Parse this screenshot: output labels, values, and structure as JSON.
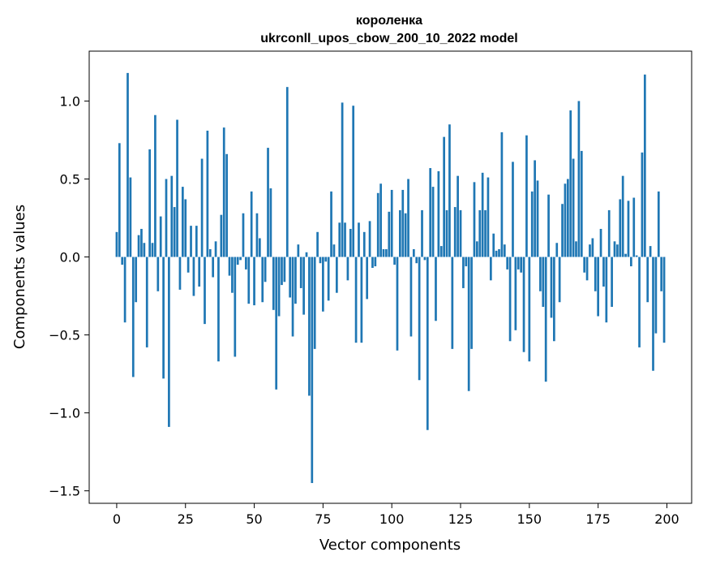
{
  "chart_data": {
    "type": "bar",
    "title": "короленка",
    "subtitle": "ukrconll_upos_cbow_200_10_2022 model",
    "xlabel": "Vector components",
    "ylabel": "Components values",
    "xlim": [
      -10,
      209
    ],
    "ylim": [
      -1.58,
      1.32
    ],
    "xticks": [
      0,
      25,
      50,
      75,
      100,
      125,
      150,
      175,
      200
    ],
    "yticks": [
      -1.5,
      -1.0,
      -0.5,
      0.0,
      0.5,
      1.0
    ],
    "ytick_labels": [
      "−1.5",
      "−1.0",
      "−0.5",
      "0.0",
      "0.5",
      "1.0"
    ],
    "bar_color": "#1f77b4",
    "grid": false,
    "legend": "none",
    "x": [
      0,
      1,
      2,
      3,
      4,
      5,
      6,
      7,
      8,
      9,
      10,
      11,
      12,
      13,
      14,
      15,
      16,
      17,
      18,
      19,
      20,
      21,
      22,
      23,
      24,
      25,
      26,
      27,
      28,
      29,
      30,
      31,
      32,
      33,
      34,
      35,
      36,
      37,
      38,
      39,
      40,
      41,
      42,
      43,
      44,
      45,
      46,
      47,
      48,
      49,
      50,
      51,
      52,
      53,
      54,
      55,
      56,
      57,
      58,
      59,
      60,
      61,
      62,
      63,
      64,
      65,
      66,
      67,
      68,
      69,
      70,
      71,
      72,
      73,
      74,
      75,
      76,
      77,
      78,
      79,
      80,
      81,
      82,
      83,
      84,
      85,
      86,
      87,
      88,
      89,
      90,
      91,
      92,
      93,
      94,
      95,
      96,
      97,
      98,
      99,
      100,
      101,
      102,
      103,
      104,
      105,
      106,
      107,
      108,
      109,
      110,
      111,
      112,
      113,
      114,
      115,
      116,
      117,
      118,
      119,
      120,
      121,
      122,
      123,
      124,
      125,
      126,
      127,
      128,
      129,
      130,
      131,
      132,
      133,
      134,
      135,
      136,
      137,
      138,
      139,
      140,
      141,
      142,
      143,
      144,
      145,
      146,
      147,
      148,
      149,
      150,
      151,
      152,
      153,
      154,
      155,
      156,
      157,
      158,
      159,
      160,
      161,
      162,
      163,
      164,
      165,
      166,
      167,
      168,
      169,
      170,
      171,
      172,
      173,
      174,
      175,
      176,
      177,
      178,
      179,
      180,
      181,
      182,
      183,
      184,
      185,
      186,
      187,
      188,
      189,
      190,
      191,
      192,
      193,
      194,
      195,
      196,
      197,
      198,
      199
    ],
    "values": [
      0.16,
      0.73,
      -0.05,
      -0.42,
      1.18,
      0.51,
      -0.77,
      -0.29,
      0.14,
      0.18,
      0.09,
      -0.58,
      0.69,
      0.09,
      0.91,
      -0.22,
      0.26,
      -0.78,
      0.5,
      -1.09,
      0.52,
      0.32,
      0.88,
      -0.21,
      0.45,
      0.37,
      -0.1,
      0.2,
      -0.25,
      0.2,
      -0.19,
      0.63,
      -0.43,
      0.81,
      0.05,
      -0.13,
      0.1,
      -0.67,
      0.27,
      0.83,
      0.66,
      -0.12,
      -0.23,
      -0.64,
      -0.05,
      -0.02,
      0.28,
      -0.08,
      -0.3,
      0.42,
      -0.31,
      0.28,
      0.12,
      -0.29,
      -0.16,
      0.7,
      0.44,
      -0.34,
      -0.85,
      -0.38,
      -0.18,
      -0.16,
      1.09,
      -0.26,
      -0.51,
      -0.3,
      0.08,
      -0.2,
      -0.37,
      0.03,
      -0.89,
      -1.45,
      -0.59,
      0.16,
      -0.04,
      -0.35,
      -0.03,
      -0.28,
      0.42,
      0.08,
      -0.23,
      0.22,
      0.99,
      0.22,
      -0.15,
      0.18,
      0.97,
      -0.55,
      0.22,
      -0.55,
      0.16,
      -0.27,
      0.23,
      -0.07,
      -0.06,
      0.41,
      0.47,
      0.05,
      0.05,
      0.29,
      0.43,
      -0.05,
      -0.6,
      0.3,
      0.43,
      0.28,
      0.5,
      -0.51,
      0.05,
      -0.04,
      -0.79,
      0.3,
      -0.02,
      -1.11,
      0.57,
      0.45,
      -0.41,
      0.55,
      0.07,
      0.77,
      0.3,
      0.85,
      -0.59,
      0.32,
      0.52,
      0.3,
      -0.2,
      -0.06,
      -0.86,
      -0.59,
      0.48,
      0.1,
      0.3,
      0.54,
      0.3,
      0.51,
      -0.15,
      0.15,
      0.04,
      0.05,
      0.8,
      0.08,
      -0.08,
      -0.54,
      0.61,
      -0.47,
      -0.08,
      -0.1,
      -0.61,
      0.78,
      -0.67,
      0.42,
      0.62,
      0.49,
      -0.22,
      -0.32,
      -0.8,
      0.4,
      -0.39,
      -0.54,
      0.09,
      -0.29,
      0.34,
      0.47,
      0.5,
      0.94,
      0.63,
      0.1,
      1.0,
      0.68,
      -0.1,
      -0.15,
      0.08,
      0.12,
      -0.22,
      -0.38,
      0.18,
      -0.19,
      -0.42,
      0.3,
      -0.32,
      0.1,
      0.08,
      0.37,
      0.52,
      0.02,
      0.36,
      -0.06,
      0.38,
      0.01,
      -0.58,
      0.67,
      1.17,
      -0.29,
      0.07,
      -0.73,
      -0.49,
      0.42,
      -0.22,
      -0.55
    ]
  }
}
